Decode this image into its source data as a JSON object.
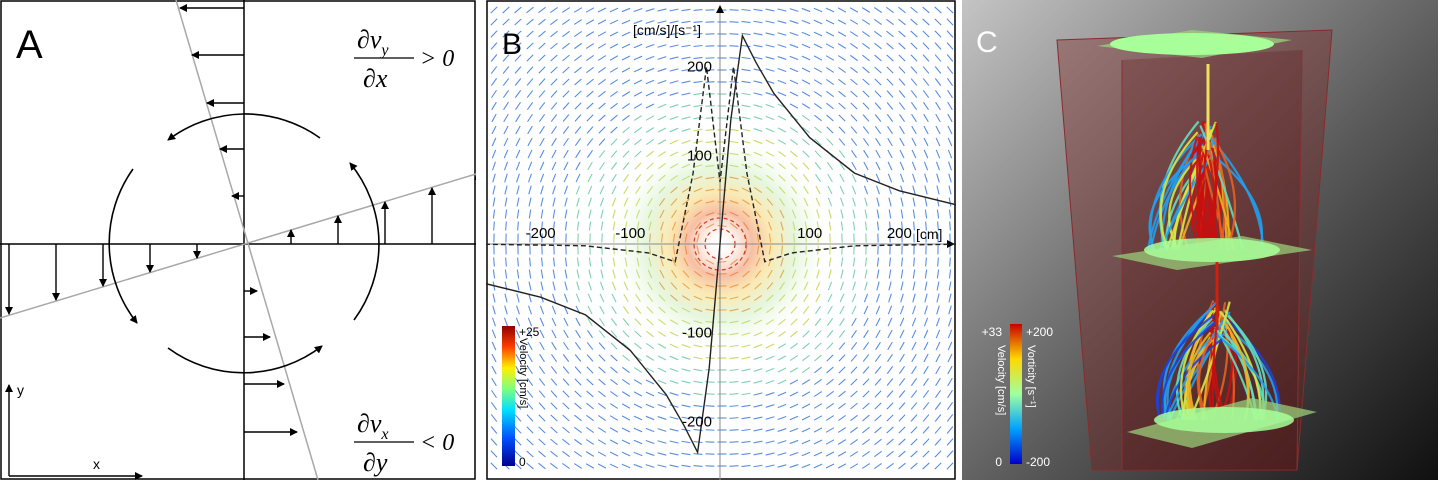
{
  "panel_a": {
    "label": "A",
    "eq_top": {
      "numerator": "∂v",
      "num_sub": "y",
      "denominator": "∂x",
      "relation": "> 0"
    },
    "eq_bottom": {
      "numerator": "∂v",
      "num_sub": "x",
      "denominator": "∂y",
      "relation": "< 0"
    },
    "axis_y": "y",
    "axis_x": "x"
  },
  "panel_b": {
    "label": "B",
    "y_unit": "[cm/s]/[s⁻¹]",
    "x_unit": "[cm]",
    "x_ticks": [
      "-200",
      "-100",
      "100",
      "200"
    ],
    "y_ticks": [
      "200",
      "100",
      "-100",
      "-200"
    ],
    "colorbar": {
      "max": "+25",
      "min": "0",
      "title": "Velocity [cm/s]"
    }
  },
  "panel_c": {
    "label": "C",
    "colorbar": {
      "velocity_max": "+33",
      "velocity_min": "0",
      "vorticity_max": "+200",
      "vorticity_min": "-200",
      "velocity_title": "Velocity [cm/s]",
      "vorticity_title": "Vorticity [s⁻¹]"
    }
  },
  "chart_data": {
    "type": "line",
    "xlim": [
      -270,
      270
    ],
    "ylim": [
      -265,
      265
    ],
    "series": [
      {
        "x": [
          -280,
          -200,
          -150,
          -100,
          -60,
          -40,
          -25,
          -12,
          0,
          12,
          25,
          40,
          60,
          100,
          150,
          200,
          280
        ],
        "values": [
          -40,
          -60,
          -80,
          -120,
          -170,
          -205,
          -235,
          -140,
          0,
          140,
          235,
          205,
          170,
          120,
          80,
          60,
          40
        ]
      },
      {
        "x": [
          -280,
          -150,
          -80,
          -50,
          -30,
          -15,
          0,
          15,
          30,
          50,
          80,
          150,
          280
        ],
        "values": [
          0,
          -2,
          -10,
          -20,
          80,
          200,
          70,
          200,
          80,
          -20,
          -10,
          -2,
          0
        ]
      }
    ]
  }
}
